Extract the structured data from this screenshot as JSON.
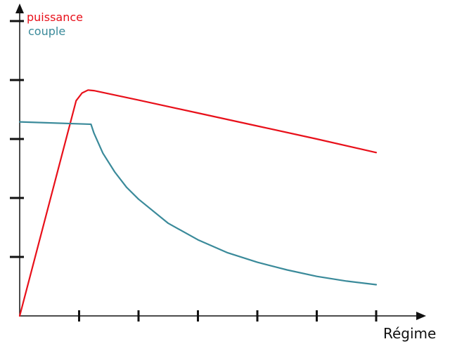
{
  "chart_data": {
    "type": "line",
    "title": "",
    "xlabel": "Régime",
    "ylabel": "",
    "x_tick_count": 6,
    "y_tick_count": 5,
    "xlim": [
      0,
      6.15
    ],
    "ylim": [
      0,
      5.0
    ],
    "grid": false,
    "legend_placement": "top-left",
    "series": [
      {
        "name": "puissance",
        "color": "#e8101a",
        "points": [
          [
            0.0,
            0.0
          ],
          [
            0.95,
            3.65
          ],
          [
            1.05,
            3.78
          ],
          [
            1.15,
            3.83
          ],
          [
            1.25,
            3.82
          ],
          [
            2.0,
            3.66
          ],
          [
            3.0,
            3.44
          ],
          [
            4.0,
            3.22
          ],
          [
            5.0,
            3.0
          ],
          [
            6.0,
            2.77
          ]
        ]
      },
      {
        "name": "couple",
        "color": "#3a8a9a",
        "points": [
          [
            0.0,
            3.29
          ],
          [
            1.2,
            3.25
          ],
          [
            1.25,
            3.1
          ],
          [
            1.4,
            2.76
          ],
          [
            1.6,
            2.44
          ],
          [
            1.8,
            2.18
          ],
          [
            2.0,
            1.98
          ],
          [
            2.5,
            1.57
          ],
          [
            3.0,
            1.29
          ],
          [
            3.5,
            1.07
          ],
          [
            4.0,
            0.91
          ],
          [
            4.5,
            0.78
          ],
          [
            5.0,
            0.67
          ],
          [
            5.5,
            0.59
          ],
          [
            6.0,
            0.53
          ]
        ]
      }
    ]
  }
}
